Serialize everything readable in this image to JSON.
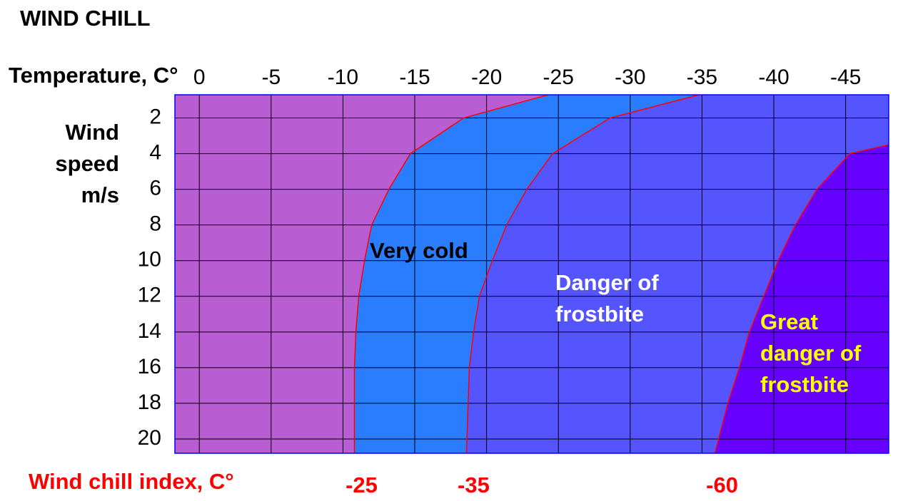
{
  "chart_data": {
    "type": "zone",
    "title": "WIND CHILL",
    "x_label": "Temperature, C°",
    "y_label": "Wind speed m/s",
    "index_label": "Wind chill index, C°",
    "xlim": [
      1.7,
      -48
    ],
    "xticks": [
      0,
      -5,
      -10,
      -15,
      -20,
      -25,
      -30,
      -35,
      -40,
      -45
    ],
    "ylim": [
      0.7,
      20.8
    ],
    "yticks": [
      2,
      4,
      6,
      8,
      10,
      12,
      14,
      16,
      18,
      20
    ],
    "grid": true,
    "background_color": "#b95ed2",
    "boundary_color": "#ff0000",
    "zones": [
      {
        "name": "Very cold",
        "color": "#2b7dff",
        "label_color": "#000000",
        "index": -25,
        "speed": [
          20.8,
          16,
          14,
          12,
          10,
          8,
          6,
          4,
          2,
          0.7
        ],
        "temperature": [
          -10.8,
          -10.8,
          -10.9,
          -11.1,
          -11.5,
          -12.0,
          -13.2,
          -14.7,
          -18.4,
          -24.3
        ]
      },
      {
        "name": "Danger of frostbite",
        "color": "#5555ff",
        "label_color": "#ffffff",
        "index": -35,
        "speed": [
          20.8,
          16,
          14,
          12,
          10,
          8,
          6,
          4,
          2,
          0.7
        ],
        "temperature": [
          -18.6,
          -18.8,
          -19.1,
          -19.5,
          -20.4,
          -21.4,
          -22.8,
          -24.6,
          -28.6,
          -34.8
        ]
      },
      {
        "name": "Great danger of frostbite",
        "color": "#6600ff",
        "label_color": "#ffff00",
        "index": -60,
        "speed": [
          20.8,
          18,
          16,
          14,
          12,
          10,
          8,
          6,
          4,
          3.5
        ],
        "temperature": [
          -35.9,
          -36.8,
          -37.6,
          -38.3,
          -39.3,
          -40.3,
          -41.5,
          -43.0,
          -45.3,
          -48
        ]
      }
    ]
  }
}
